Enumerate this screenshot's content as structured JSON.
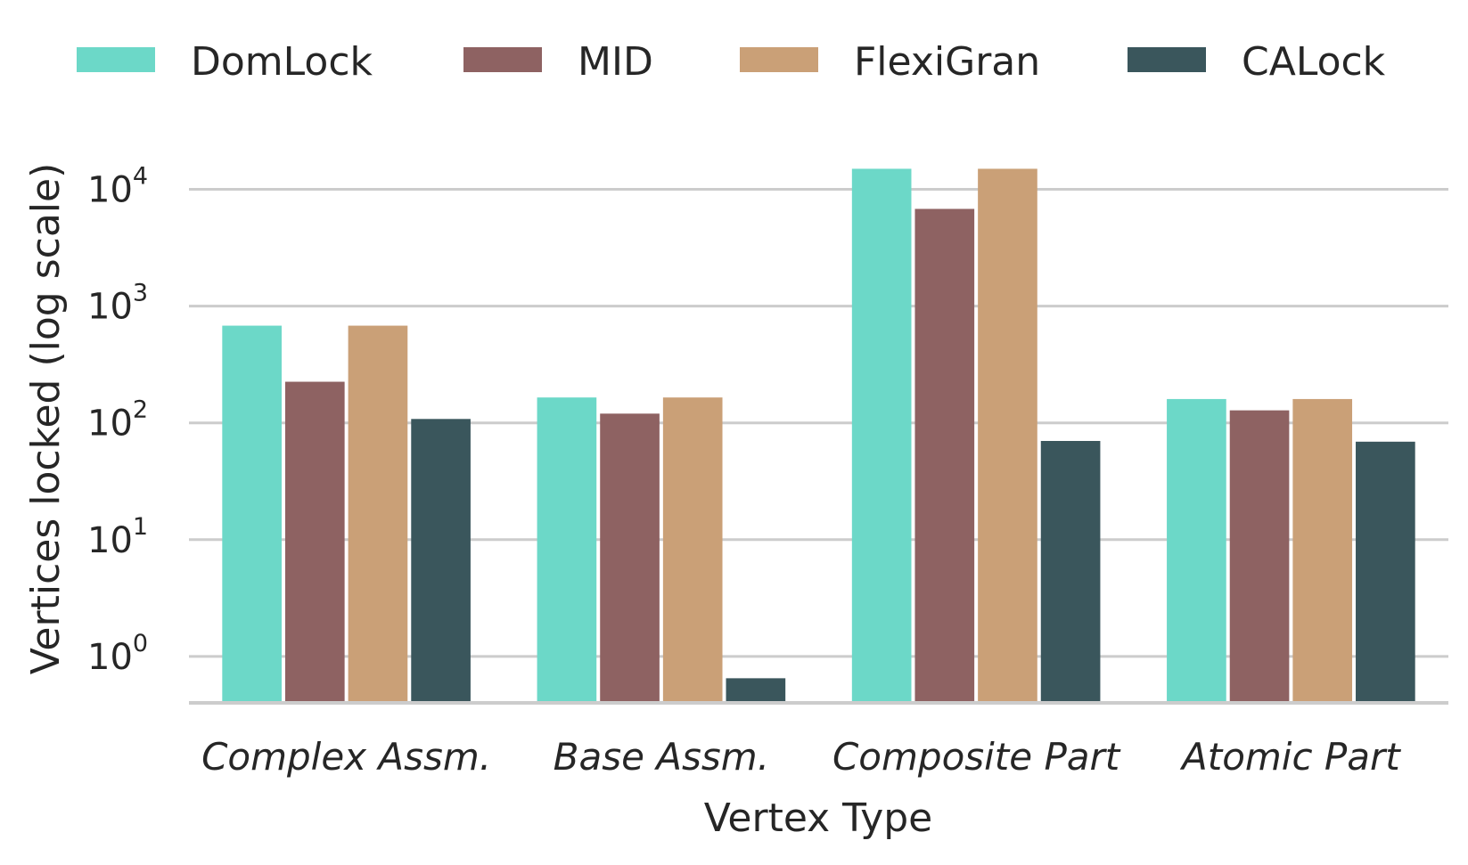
{
  "chart_data": {
    "type": "bar",
    "xlabel": "Vertex Type",
    "ylabel": "Vertices locked (log scale)",
    "yscale": "log",
    "ylim": [
      0.4,
      30000
    ],
    "yticks": [
      {
        "value": 1,
        "base": "10",
        "exp": "0"
      },
      {
        "value": 10,
        "base": "10",
        "exp": "1"
      },
      {
        "value": 100,
        "base": "10",
        "exp": "2"
      },
      {
        "value": 1000,
        "base": "10",
        "exp": "3"
      },
      {
        "value": 10000,
        "base": "10",
        "exp": "4"
      }
    ],
    "grid": "horizontal",
    "legend": "top",
    "categories": [
      "Complex Assm.",
      "Base Assm.",
      "Composite Part",
      "Atomic Part"
    ],
    "series": [
      {
        "name": "DomLock",
        "color": "#6cd8c8",
        "values": [
          680,
          165,
          15000,
          160
        ]
      },
      {
        "name": "MID",
        "color": "#8e6262",
        "values": [
          225,
          120,
          6800,
          128
        ]
      },
      {
        "name": "FlexiGran",
        "color": "#caa077",
        "values": [
          680,
          165,
          15000,
          160
        ]
      },
      {
        "name": "CALock",
        "color": "#3a565c",
        "values": [
          108,
          0.65,
          70,
          69
        ]
      }
    ]
  }
}
